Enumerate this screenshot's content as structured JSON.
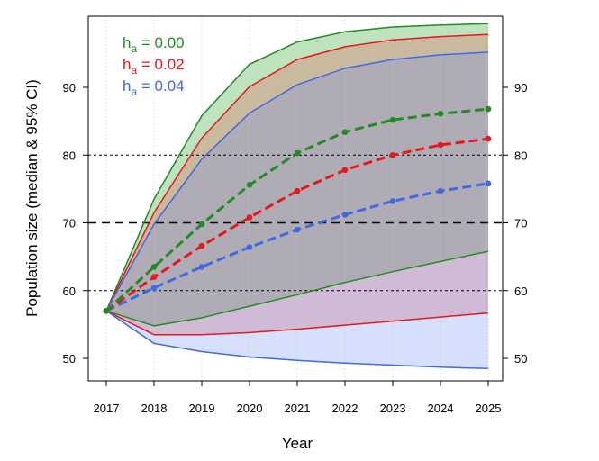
{
  "chart_data": {
    "type": "line",
    "title": "",
    "xlabel": "Year",
    "ylabel": "Population size (median & 95% CI)",
    "x": [
      2017,
      2018,
      2019,
      2020,
      2021,
      2022,
      2023,
      2024,
      2025
    ],
    "xlim": [
      2017,
      2025
    ],
    "ylim": [
      46,
      99
    ],
    "yticks": [
      50,
      60,
      70,
      80,
      90
    ],
    "reference_lines": [
      {
        "y": 80,
        "style": "dotted"
      },
      {
        "y": 70,
        "style": "dashed"
      },
      {
        "y": 60,
        "style": "dotted"
      }
    ],
    "grid": "vertical dotted gridlines at each year",
    "legend_position": "top-left",
    "series": [
      {
        "name": "h_a = 0.00",
        "legend_sub": "a",
        "legend_value": " = 0.00",
        "color": "#228B22",
        "fill": "#1a9a1a",
        "median": [
          57.0,
          63.5,
          69.8,
          75.6,
          80.3,
          83.4,
          85.2,
          86.1,
          86.8
        ],
        "upper": [
          57.0,
          73.5,
          85.8,
          93.4,
          96.7,
          98.2,
          98.9,
          99.2,
          99.4
        ],
        "lower": [
          57.0,
          54.8,
          56.0,
          57.7,
          59.4,
          61.2,
          62.8,
          64.3,
          65.8
        ]
      },
      {
        "name": "h_a = 0.02",
        "legend_sub": "a",
        "legend_value": " = 0.02",
        "color": "#e31a1c",
        "fill": "#e34a4a",
        "median": [
          57.0,
          62.0,
          66.6,
          70.8,
          74.7,
          77.8,
          80.0,
          81.5,
          82.4
        ],
        "upper": [
          57.0,
          71.5,
          82.5,
          90.1,
          94.1,
          96.0,
          97.0,
          97.5,
          97.8
        ],
        "lower": [
          57.0,
          53.5,
          53.5,
          53.8,
          54.3,
          54.9,
          55.5,
          56.1,
          56.7
        ]
      },
      {
        "name": "h_a = 0.04",
        "legend_sub": "a",
        "legend_value": " = 0.04",
        "color": "#4169e1",
        "fill": "#6a8cf0",
        "median": [
          57.0,
          60.4,
          63.5,
          66.4,
          69.0,
          71.2,
          73.2,
          74.7,
          75.8
        ],
        "upper": [
          57.0,
          69.8,
          79.4,
          86.2,
          90.4,
          92.8,
          94.1,
          94.8,
          95.2
        ],
        "lower": [
          57.0,
          52.2,
          51.0,
          50.2,
          49.7,
          49.3,
          49.0,
          48.7,
          48.5
        ]
      }
    ]
  }
}
